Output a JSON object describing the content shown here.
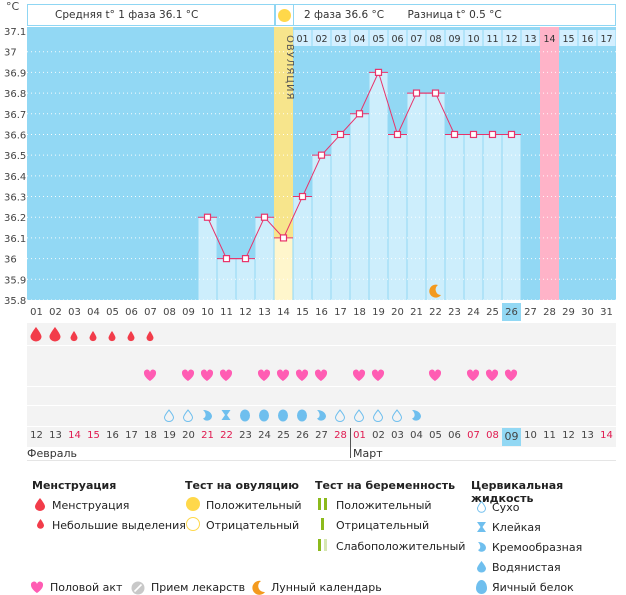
{
  "header": {
    "unit": "°C",
    "phase1": "Средняя t° 1 фаза 36.1 °C",
    "phase2": "2 фаза 36.6 °C",
    "difference": "Разница t° 0.5 °C",
    "ovulation_label": "ОВУЛЯЦИЯ"
  },
  "chart_data": {
    "type": "bar",
    "title": "",
    "ylabel": "°C",
    "ylim": [
      35.8,
      37.1
    ],
    "yticks": [
      "37.1",
      "37",
      "36.9",
      "36.8",
      "36.7",
      "36.6",
      "36.5",
      "36.4",
      "36.3",
      "36.2",
      "36.1",
      "36",
      "35.9",
      "35.8"
    ],
    "cycle_days": [
      "01",
      "02",
      "03",
      "04",
      "05",
      "06",
      "07",
      "08",
      "09",
      "10",
      "11",
      "12",
      "13",
      "14",
      "15",
      "16",
      "17",
      "18",
      "19",
      "20",
      "21",
      "22",
      "23",
      "24",
      "25",
      "26",
      "27",
      "28",
      "29",
      "30",
      "31"
    ],
    "temperatures": [
      null,
      null,
      null,
      null,
      null,
      null,
      null,
      null,
      null,
      36.2,
      36.0,
      36.0,
      36.2,
      36.1,
      36.3,
      36.5,
      36.6,
      36.7,
      36.9,
      36.6,
      36.8,
      36.8,
      36.6,
      36.6,
      36.6,
      36.6,
      null,
      null,
      null,
      null,
      null
    ],
    "ovulation_day": "14",
    "current_day": "26",
    "expected_period_day": "28",
    "phase2_days": [
      "01",
      "02",
      "03",
      "04",
      "05",
      "06",
      "07",
      "08",
      "09",
      "10",
      "11",
      "12",
      "13",
      "14",
      "15",
      "16",
      "17"
    ],
    "phase2_highlight_day": "14",
    "moon_day": "22",
    "grid": true
  },
  "markers": {
    "menstruation": [
      "heavy",
      "heavy",
      "light",
      "light",
      "light",
      "light",
      "light",
      null,
      null,
      null,
      null,
      null,
      null,
      null,
      null,
      null,
      null,
      null,
      null,
      null,
      null,
      null,
      null,
      null,
      null,
      null,
      null,
      null,
      null,
      null,
      null
    ],
    "intercourse_days": [
      "07",
      "09",
      "10",
      "11",
      "13",
      "14",
      "15",
      "16",
      "18",
      "19",
      "22",
      "24",
      "25",
      "26"
    ],
    "cervical_fluid": [
      null,
      null,
      null,
      null,
      null,
      null,
      null,
      "dry",
      "dry",
      "creamy",
      "sticky",
      "egg-white",
      "egg-white",
      "egg-white",
      "egg-white",
      "creamy",
      "dry",
      "dry",
      "dry",
      "dry",
      "creamy",
      null,
      null,
      null,
      null,
      null,
      null,
      null,
      null,
      null,
      null
    ]
  },
  "calendar": {
    "dates": [
      "12",
      "13",
      "14",
      "15",
      "16",
      "17",
      "18",
      "19",
      "20",
      "21",
      "22",
      "23",
      "24",
      "25",
      "26",
      "27",
      "28",
      "01",
      "02",
      "03",
      "04",
      "05",
      "06",
      "07",
      "08",
      "09",
      "10",
      "11",
      "12",
      "13",
      "14"
    ],
    "weekend_flags": [
      false,
      false,
      true,
      true,
      false,
      false,
      false,
      false,
      false,
      true,
      true,
      false,
      false,
      false,
      false,
      false,
      true,
      true,
      false,
      false,
      false,
      false,
      false,
      true,
      true,
      false,
      false,
      false,
      false,
      false,
      true
    ],
    "today_date": "09",
    "month1": "Февраль",
    "month2": "Март"
  },
  "legend": {
    "menstruation": {
      "title": "Менструация",
      "items": [
        "Менструация",
        "Небольшие выделения"
      ]
    },
    "ovulation_test": {
      "title": "Тест на овуляцию",
      "items": [
        "Положительный",
        "Отрицательный"
      ]
    },
    "pregnancy_test": {
      "title": "Тест на беременность",
      "items": [
        "Положительный",
        "Отрицательный",
        "Слабоположительный"
      ]
    },
    "cervical_fluid": {
      "title": "Цервикальная жидкость",
      "items": [
        "Сухо",
        "Клейкая",
        "Кремообразная",
        "Водянистая",
        "Яичный белок"
      ]
    },
    "bottom": [
      "Половой акт",
      "Прием лекарств",
      "Лунный календарь"
    ]
  },
  "colors": {
    "sky": "#92d8f4",
    "bar": "#cdeefc",
    "line": "#e8336a",
    "ovulation": "#f7e58c",
    "pink": "#ffb3c8",
    "heart": "#ff5cb3",
    "blood": "#f23c4a",
    "fluid": "#6fbfee",
    "weekend": "#e0194f",
    "green": "#8cba1c",
    "moon": "#f39a1e",
    "sun": "#ffd84a"
  }
}
